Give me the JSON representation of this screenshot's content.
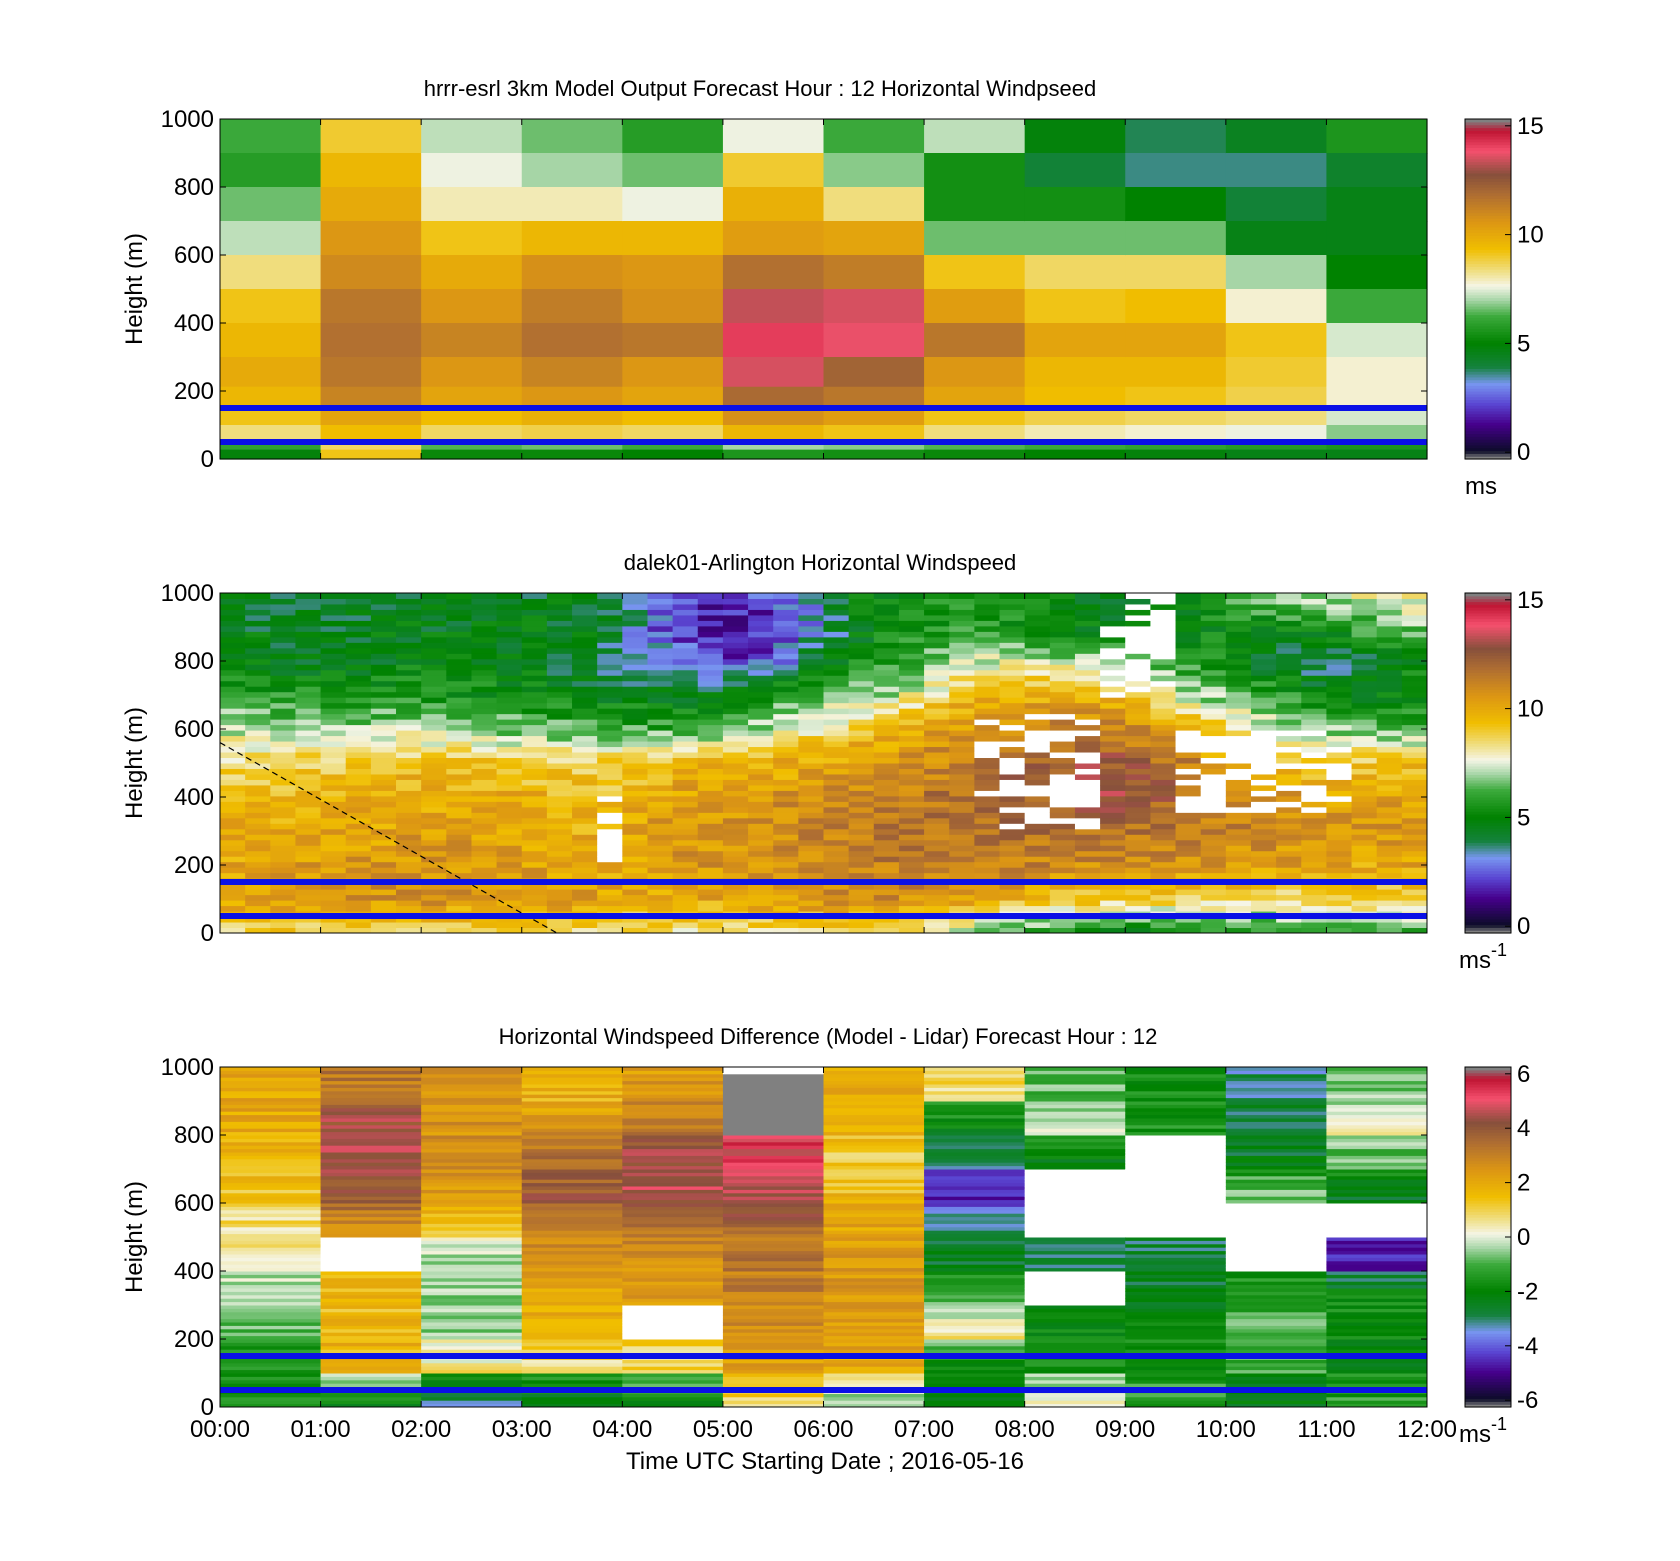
{
  "figure": {
    "xlabel": "Time UTC  Starting Date ; 2016-05-16",
    "x_ticks": [
      "00:00",
      "01:00",
      "02:00",
      "03:00",
      "04:00",
      "05:00",
      "06:00",
      "07:00",
      "08:00",
      "09:00",
      "10:00",
      "11:00",
      "12:00"
    ],
    "y_ticks": [
      "0",
      "200",
      "400",
      "600",
      "800",
      "1000"
    ]
  },
  "chart_data": [
    {
      "type": "heatmap",
      "title": "hrrr-esrl 3km Model Output   Forecast Hour : 12 Horizontal Windpseed",
      "ylabel": "Height (m)",
      "xlim": [
        0,
        12
      ],
      "ylim": [
        0,
        1000
      ],
      "colorbar": {
        "range": [
          0,
          15
        ],
        "ticks": [
          "0",
          "5",
          "10",
          "15"
        ],
        "unit": "ms"
      },
      "reference_lines_m": [
        150,
        50
      ],
      "reference_line_color": "#0a10e6",
      "x_centers_h": [
        0.5,
        1.5,
        2.5,
        3.5,
        4.5,
        5.5,
        6.5,
        7.5,
        8.5,
        9.5,
        10.5,
        11.5
      ],
      "y_levels_m": [
        950,
        850,
        750,
        650,
        550,
        450,
        350,
        250,
        175,
        125,
        75,
        40,
        15
      ],
      "values": [
        [
          6.2,
          9.0,
          7.2,
          6.6,
          5.8,
          7.6,
          6.2,
          7.2,
          4.8,
          3.8,
          4.4,
          5.6
        ],
        [
          5.8,
          9.6,
          7.6,
          7.0,
          6.6,
          9.0,
          6.8,
          5.4,
          4.0,
          3.6,
          3.6,
          4.2
        ],
        [
          6.6,
          10.0,
          8.0,
          8.0,
          7.6,
          9.8,
          8.4,
          5.4,
          5.4,
          5.0,
          4.0,
          4.6
        ],
        [
          7.2,
          10.6,
          9.2,
          9.6,
          9.6,
          10.4,
          10.2,
          6.6,
          6.6,
          6.6,
          4.6,
          4.6
        ],
        [
          8.4,
          11.0,
          10.0,
          10.8,
          10.6,
          11.8,
          11.4,
          9.2,
          8.6,
          8.6,
          7.0,
          5.0
        ],
        [
          9.2,
          11.6,
          10.6,
          11.4,
          10.8,
          13.4,
          13.6,
          10.4,
          9.2,
          9.4,
          7.8,
          6.2
        ],
        [
          9.6,
          11.8,
          11.2,
          11.8,
          11.6,
          14.2,
          13.8,
          11.6,
          10.2,
          10.2,
          9.2,
          7.4
        ],
        [
          10.0,
          11.6,
          10.6,
          11.2,
          10.6,
          13.6,
          12.2,
          10.6,
          9.6,
          9.6,
          9.0,
          7.8
        ],
        [
          9.6,
          11.2,
          10.2,
          10.6,
          10.2,
          12.0,
          11.6,
          10.2,
          9.4,
          9.2,
          8.8,
          7.8
        ],
        [
          9.2,
          10.2,
          9.4,
          9.8,
          9.4,
          10.8,
          10.4,
          9.2,
          8.8,
          8.6,
          8.4,
          7.4
        ],
        [
          8.4,
          9.4,
          8.6,
          8.8,
          8.6,
          9.6,
          9.2,
          8.4,
          8.0,
          7.8,
          7.6,
          6.8
        ],
        [
          6.0,
          8.6,
          6.4,
          6.6,
          6.2,
          7.0,
          6.8,
          6.4,
          6.2,
          6.0,
          5.8,
          5.6
        ],
        [
          4.8,
          9.2,
          5.2,
          5.2,
          5.0,
          5.6,
          5.4,
          5.2,
          5.0,
          4.8,
          4.6,
          4.6
        ]
      ]
    },
    {
      "type": "heatmap",
      "title": "dalek01-Arlington  Horizontal Windspeed",
      "ylabel": "Height (m)",
      "xlim": [
        0,
        12
      ],
      "ylim": [
        0,
        1000
      ],
      "colorbar": {
        "range": [
          0,
          15
        ],
        "ticks": [
          "0",
          "5",
          "10",
          "15"
        ],
        "unit": "ms",
        "unit_superscript": "-1"
      },
      "reference_lines_m": [
        150,
        50
      ],
      "reference_line_color": "#0a10e6",
      "time_bins_h": 48,
      "profile_anchor_times_h": [
        0.0,
        1.0,
        2.0,
        3.0,
        3.8,
        4.3,
        5.0,
        5.5,
        6.0,
        6.6,
        7.0,
        7.5,
        8.0,
        8.5,
        9.0,
        9.5,
        10.0,
        10.5,
        11.0,
        11.5,
        12.0
      ],
      "profile_anchor_heights_m": [
        0,
        100,
        200,
        300,
        400,
        500,
        600,
        700,
        800,
        900,
        1000
      ],
      "profile_anchor_values": [
        [
          8.8,
          10.2,
          10.0,
          9.8,
          9.4,
          8.6,
          7.4,
          5.8,
          4.8,
          4.6,
          4.4
        ],
        [
          8.6,
          10.6,
          10.4,
          10.0,
          9.6,
          8.8,
          7.0,
          5.6,
          4.6,
          4.4,
          4.2
        ],
        [
          8.6,
          10.8,
          10.6,
          10.4,
          10.0,
          9.4,
          7.2,
          5.6,
          4.8,
          4.6,
          4.4
        ],
        [
          8.4,
          10.6,
          10.4,
          10.2,
          9.8,
          9.2,
          6.6,
          5.2,
          4.6,
          4.6,
          4.4
        ],
        [
          8.2,
          10.2,
          10.0,
          9.8,
          9.4,
          8.8,
          6.2,
          4.8,
          3.8,
          4.6,
          4.6
        ],
        [
          8.2,
          10.0,
          10.4,
          10.6,
          10.2,
          9.4,
          6.0,
          4.6,
          3.2,
          2.6,
          3.2
        ],
        [
          8.0,
          10.2,
          10.6,
          10.8,
          10.4,
          9.6,
          6.6,
          4.6,
          2.0,
          1.4,
          1.6
        ],
        [
          8.2,
          10.4,
          10.8,
          11.0,
          10.6,
          9.8,
          7.4,
          5.6,
          2.6,
          1.8,
          2.4
        ],
        [
          8.4,
          10.6,
          11.0,
          11.2,
          10.8,
          10.2,
          8.4,
          6.4,
          4.6,
          3.4,
          4.0
        ],
        [
          8.6,
          11.0,
          11.4,
          11.6,
          11.2,
          10.6,
          9.6,
          7.0,
          5.6,
          5.0,
          5.2
        ],
        [
          7.6,
          10.8,
          11.6,
          11.8,
          11.6,
          11.0,
          10.2,
          8.0,
          6.2,
          5.6,
          5.6
        ],
        [
          6.8,
          10.4,
          11.4,
          11.8,
          11.8,
          11.4,
          10.6,
          9.8,
          7.4,
          6.0,
          5.8
        ],
        [
          5.6,
          9.6,
          11.2,
          11.8,
          12.4,
          12.2,
          11.0,
          9.8,
          7.6,
          5.2,
          5.0
        ],
        [
          5.2,
          9.2,
          11.0,
          11.8,
          12.6,
          12.6,
          11.4,
          10.0,
          7.2,
          4.8,
          4.8
        ],
        [
          5.0,
          9.0,
          10.8,
          11.8,
          12.8,
          12.6,
          11.2,
          9.4,
          6.4,
          4.4,
          4.6
        ],
        [
          5.2,
          8.8,
          10.6,
          11.6,
          12.2,
          11.8,
          10.0,
          7.6,
          5.8,
          4.8,
          5.2
        ],
        [
          5.4,
          8.8,
          10.6,
          11.2,
          11.2,
          10.2,
          8.6,
          6.6,
          5.4,
          5.2,
          6.4
        ],
        [
          5.6,
          8.6,
          10.4,
          11.0,
          10.8,
          9.4,
          7.8,
          5.8,
          4.2,
          5.0,
          7.2
        ],
        [
          5.8,
          8.6,
          10.2,
          10.8,
          10.4,
          9.2,
          7.0,
          4.8,
          3.6,
          5.4,
          7.4
        ],
        [
          6.0,
          8.8,
          10.0,
          10.6,
          10.2,
          9.2,
          6.4,
          4.8,
          4.4,
          6.2,
          8.0
        ],
        [
          6.2,
          9.0,
          10.2,
          10.6,
          10.2,
          9.4,
          6.4,
          5.4,
          5.0,
          6.6,
          8.4
        ]
      ],
      "missing_data_regions": [
        {
          "t": [
            3.85,
            4.05
          ],
          "z": [
            200,
            400
          ]
        },
        {
          "t": [
            7.6,
            8.7
          ],
          "z": [
            300,
            650
          ]
        },
        {
          "t": [
            8.7,
            9.4
          ],
          "z": [
            700,
            1000
          ]
        },
        {
          "t": [
            9.4,
            11.2
          ],
          "z": [
            350,
            600
          ]
        }
      ],
      "reference_dashed_line": {
        "from": [
          0.0,
          560
        ],
        "to": [
          3.35,
          0
        ]
      }
    },
    {
      "type": "heatmap",
      "title": "Horizontal Windspeed Difference (Model - Lidar) Forecast Hour : 12",
      "ylabel": "Height (m)",
      "xlabel": "Time UTC  Starting Date ; 2016-05-16",
      "xlim": [
        0,
        12
      ],
      "ylim": [
        0,
        1000
      ],
      "colorbar": {
        "range": [
          -6,
          6
        ],
        "ticks": [
          "-6",
          "-4",
          "-2",
          "0",
          "2",
          "4",
          "6"
        ],
        "unit": "ms",
        "unit_superscript": "-1"
      },
      "reference_lines_m": [
        150,
        50
      ],
      "reference_line_color": "#0a10e6",
      "x_centers_h": [
        0.5,
        1.5,
        2.5,
        3.5,
        4.5,
        5.5,
        6.5,
        7.5,
        8.5,
        9.5,
        10.5,
        11.5
      ],
      "z_bin_edges_m": [
        0,
        100,
        200,
        300,
        400,
        500,
        600,
        700,
        800,
        900,
        1000
      ],
      "values": [
        [
          -1.6,
          -1.6,
          -1.0,
          -0.6,
          0.4,
          0.6,
          1.2,
          1.8,
          2.0,
          2.0
        ],
        [
          -2.0,
          1.8,
          1.6,
          1.6,
          null,
          2.8,
          4.0,
          4.6,
          4.6,
          3.2
        ],
        [
          -3.2,
          0.6,
          -0.4,
          -0.4,
          -0.6,
          1.2,
          2.4,
          3.0,
          2.6,
          2.4
        ],
        [
          -2.6,
          0.6,
          1.6,
          2.2,
          2.4,
          3.2,
          4.0,
          3.6,
          2.6,
          1.8
        ],
        [
          -2.0,
          1.0,
          null,
          2.2,
          2.6,
          3.2,
          4.6,
          4.6,
          3.4,
          2.4
        ],
        [
          1.0,
          2.2,
          2.6,
          3.0,
          3.2,
          3.6,
          4.6,
          5.2,
          null,
          null
        ],
        [
          -0.8,
          2.0,
          2.4,
          2.4,
          2.6,
          2.2,
          1.6,
          1.2,
          1.6,
          1.8
        ],
        [
          -2.4,
          -2.0,
          0.6,
          -1.0,
          -2.4,
          -3.0,
          -5.0,
          -3.2,
          -2.4,
          0.8
        ],
        [
          0.4,
          -1.6,
          -2.0,
          null,
          -2.8,
          null,
          null,
          -2.6,
          0.0,
          -0.8
        ],
        [
          -1.2,
          -1.6,
          -1.8,
          -2.4,
          -2.8,
          null,
          null,
          null,
          -1.6,
          -1.8
        ],
        [
          -2.4,
          -1.2,
          -0.8,
          -1.6,
          null,
          null,
          -0.6,
          -2.4,
          -2.6,
          -3.0
        ],
        [
          -1.2,
          -2.2,
          -2.0,
          -1.6,
          -4.8,
          null,
          -2.4,
          -1.0,
          0.2,
          -0.6
        ]
      ]
    }
  ]
}
